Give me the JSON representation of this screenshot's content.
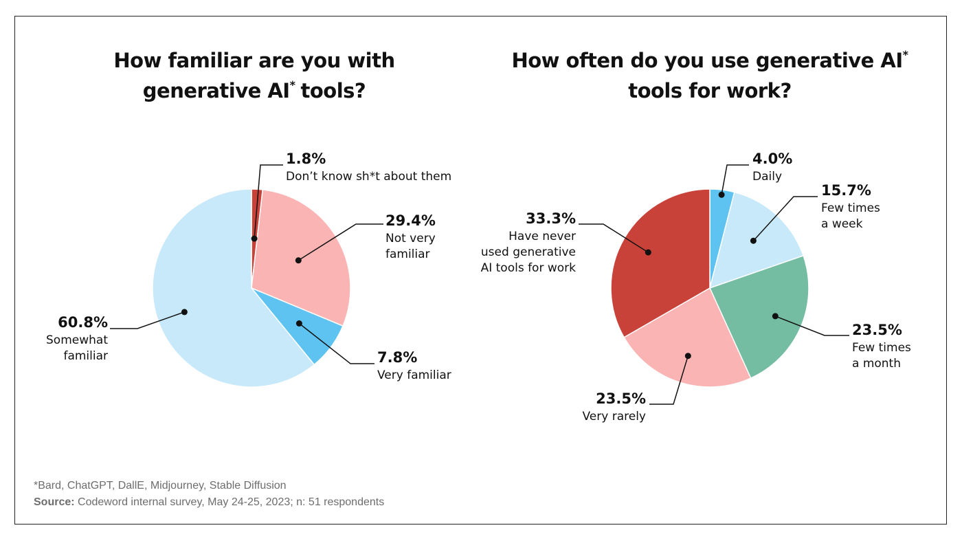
{
  "chart_data": [
    {
      "type": "pie",
      "title_lines": [
        "How familiar are you with",
        "generative AI",
        "tools?"
      ],
      "title_sup": "*",
      "slices": [
        {
          "name_lines": [
            "Don’t know sh*t about them"
          ],
          "value": 1.8,
          "label": "1.8%",
          "color": "#c9423a"
        },
        {
          "name_lines": [
            "Not very",
            "familiar"
          ],
          "value": 29.4,
          "label": "29.4%",
          "color": "#fbb4b4"
        },
        {
          "name_lines": [
            "Very familiar"
          ],
          "value": 7.8,
          "label": "7.8%",
          "color": "#5ec3f0"
        },
        {
          "name_lines": [
            "Somewhat",
            "familiar"
          ],
          "value": 60.8,
          "label": "60.8%",
          "color": "#c8e9f9"
        }
      ]
    },
    {
      "type": "pie",
      "title_lines": [
        "How often do you use generative AI",
        "tools for work?"
      ],
      "title_sup": "*",
      "slices": [
        {
          "name_lines": [
            "Daily"
          ],
          "value": 4.0,
          "label": "4.0%",
          "color": "#5ec3f0"
        },
        {
          "name_lines": [
            "Few times",
            "a week"
          ],
          "value": 15.7,
          "label": "15.7%",
          "color": "#c8e9f9"
        },
        {
          "name_lines": [
            "Few times",
            "a month"
          ],
          "value": 23.5,
          "label": "23.5%",
          "color": "#74bda2"
        },
        {
          "name_lines": [
            "Very rarely"
          ],
          "value": 23.5,
          "label": "23.5%",
          "color": "#fbb4b4"
        },
        {
          "name_lines": [
            "Have never",
            "used generative",
            "AI tools for work"
          ],
          "value": 33.3,
          "label": "33.3%",
          "color": "#c9423a"
        }
      ]
    }
  ],
  "footnote": {
    "note": "*Bard, ChatGPT, DallE, Midjourney, Stable Diffusion",
    "source_label": "Source:",
    "source_text": "Codeword internal survey, May 24-25, 2023; n: 51 respondents"
  }
}
